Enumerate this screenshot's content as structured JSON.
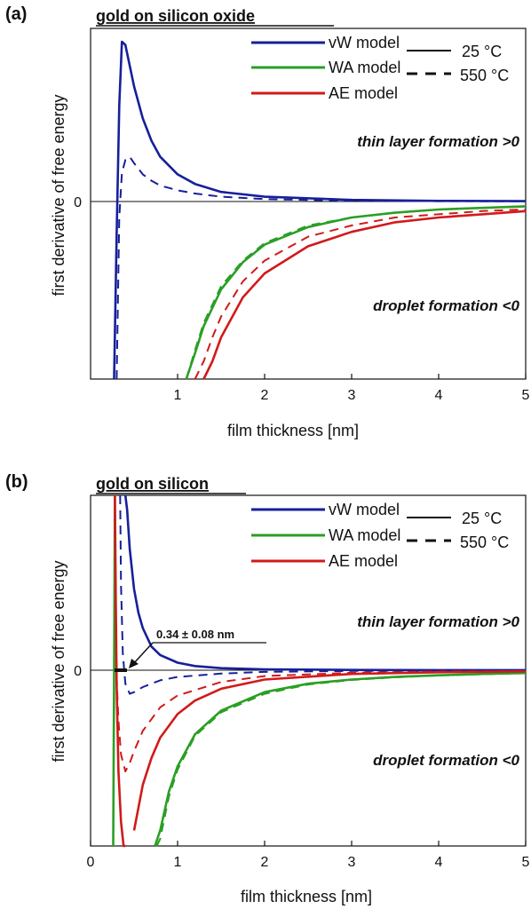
{
  "colors": {
    "vW": "#16209a",
    "WA": "#2a9f25",
    "AE": "#d11a1a",
    "axis": "#111111"
  },
  "chart_data": [
    {
      "type": "line",
      "panel_label": "(a)",
      "title": "gold on silicon oxide",
      "xlabel": "film thickness [nm]",
      "ylabel": "first derivative of free energy",
      "xlim": [
        0,
        5
      ],
      "xticks": [
        "1",
        "2",
        "3",
        "4",
        "5"
      ],
      "yticks": [
        "0"
      ],
      "legend_entries": [
        "vW model",
        "WA model",
        "AE model"
      ],
      "linestyle_legend": [
        "25 °C",
        "550 °C"
      ],
      "annotations": [
        "thin layer formation >0",
        "droplet formation <0"
      ],
      "series": [
        {
          "name": "vW model",
          "temperature": "25 °C",
          "style": "solid",
          "x": [
            0.27,
            0.3,
            0.33,
            0.36,
            0.4,
            0.45,
            0.5,
            0.6,
            0.7,
            0.8,
            1.0,
            1.2,
            1.5,
            2.0,
            3.0,
            4.0,
            5.0
          ],
          "y": [
            -1.2,
            -0.2,
            0.6,
            1.0,
            0.98,
            0.85,
            0.72,
            0.52,
            0.38,
            0.28,
            0.17,
            0.11,
            0.06,
            0.03,
            0.01,
            0.004,
            0.002
          ]
        },
        {
          "name": "vW model",
          "temperature": "550 °C",
          "style": "dashed",
          "x": [
            0.3,
            0.33,
            0.36,
            0.4,
            0.45,
            0.5,
            0.6,
            0.7,
            0.8,
            1.0,
            1.2,
            1.5,
            2.0,
            3.0,
            4.0,
            5.0
          ],
          "y": [
            -1.2,
            -0.1,
            0.18,
            0.26,
            0.28,
            0.24,
            0.17,
            0.13,
            0.1,
            0.07,
            0.05,
            0.03,
            0.015,
            0.005,
            0.002,
            0.001
          ]
        },
        {
          "name": "WA model",
          "temperature": "25 °C",
          "style": "solid",
          "x": [
            1.1,
            1.2,
            1.3,
            1.5,
            1.75,
            2.0,
            2.5,
            3.0,
            3.5,
            4.0,
            4.5,
            5.0
          ],
          "y": [
            -1.2,
            -0.95,
            -0.78,
            -0.55,
            -0.38,
            -0.27,
            -0.16,
            -0.1,
            -0.07,
            -0.05,
            -0.04,
            -0.03
          ]
        },
        {
          "name": "WA model",
          "temperature": "550 °C",
          "style": "dashed",
          "x": [
            1.1,
            1.2,
            1.3,
            1.5,
            1.75,
            2.0,
            2.5,
            3.0,
            3.5,
            4.0,
            4.5,
            5.0
          ],
          "y": [
            -1.2,
            -0.93,
            -0.76,
            -0.53,
            -0.37,
            -0.26,
            -0.15,
            -0.1,
            -0.07,
            -0.05,
            -0.04,
            -0.03
          ]
        },
        {
          "name": "AE model",
          "temperature": "25 °C",
          "style": "solid",
          "x": [
            1.3,
            1.4,
            1.5,
            1.75,
            2.0,
            2.5,
            3.0,
            3.5,
            4.0,
            4.5,
            5.0
          ],
          "y": [
            -1.2,
            -1.0,
            -0.85,
            -0.6,
            -0.45,
            -0.28,
            -0.19,
            -0.13,
            -0.1,
            -0.08,
            -0.06
          ]
        },
        {
          "name": "AE model",
          "temperature": "550 °C",
          "style": "dashed",
          "x": [
            1.2,
            1.3,
            1.4,
            1.5,
            1.75,
            2.0,
            2.5,
            3.0,
            3.5,
            4.0,
            4.5,
            5.0
          ],
          "y": [
            -1.2,
            -1.0,
            -0.85,
            -0.72,
            -0.5,
            -0.37,
            -0.22,
            -0.15,
            -0.1,
            -0.08,
            -0.06,
            -0.05
          ]
        }
      ]
    },
    {
      "type": "line",
      "panel_label": "(b)",
      "title": "gold on silicon",
      "xlabel": "film thickness [nm]",
      "ylabel": "first derivative of free energy",
      "xlim": [
        0,
        5
      ],
      "xticks": [
        "0",
        "1",
        "2",
        "3",
        "4",
        "5"
      ],
      "yticks": [
        "0"
      ],
      "legend_entries": [
        "vW model",
        "WA model",
        "AE model"
      ],
      "linestyle_legend": [
        "25 °C",
        "550 °C"
      ],
      "annotations": [
        "thin layer formation >0",
        "droplet formation <0"
      ],
      "marker_annotation": "0.34 ± 0.08 nm",
      "series": [
        {
          "name": "vW model",
          "temperature": "25 °C",
          "style": "solid",
          "x": [
            0.4,
            0.42,
            0.45,
            0.5,
            0.55,
            0.6,
            0.7,
            0.8,
            1.0,
            1.2,
            1.5,
            2.0,
            3.0,
            4.0,
            5.0
          ],
          "y": [
            1.2,
            0.95,
            0.72,
            0.48,
            0.34,
            0.25,
            0.14,
            0.09,
            0.045,
            0.025,
            0.012,
            0.005,
            0.0015,
            0.0006,
            0.0003
          ]
        },
        {
          "name": "vW model",
          "temperature": "550 °C",
          "style": "dashed",
          "x": [
            0.34,
            0.35,
            0.37,
            0.4,
            0.45,
            0.5,
            0.6,
            0.8,
            1.0,
            1.5,
            2.0,
            3.0,
            4.0,
            5.0
          ],
          "y": [
            1.2,
            0.5,
            0.1,
            -0.08,
            -0.14,
            -0.13,
            -0.1,
            -0.06,
            -0.04,
            -0.02,
            -0.01,
            -0.004,
            -0.002,
            -0.001
          ]
        },
        {
          "name": "WA model",
          "temperature": "25 °C",
          "style": "solid",
          "x": [
            0.26,
            0.27,
            0.28,
            0.29,
            0.3,
            0.31,
            0.32,
            0.74,
            0.8,
            0.9,
            1.0,
            1.2,
            1.5,
            2.0,
            2.5,
            3.0,
            3.5,
            4.0,
            4.5,
            5.0
          ],
          "y": [
            -1.2,
            0.0,
            1.2,
            null,
            null,
            null,
            null,
            -1.2,
            -0.95,
            -0.72,
            -0.57,
            -0.38,
            -0.24,
            -0.13,
            -0.08,
            -0.055,
            -0.04,
            -0.03,
            -0.022,
            -0.017
          ]
        },
        {
          "name": "WA model",
          "temperature": "550 °C",
          "style": "dashed",
          "x": [
            0.76,
            0.8,
            0.9,
            1.0,
            1.2,
            1.5,
            2.0,
            2.5,
            3.0,
            3.5,
            4.0,
            4.5,
            5.0
          ],
          "y": [
            -1.2,
            -1.0,
            -0.75,
            -0.59,
            -0.39,
            -0.25,
            -0.14,
            -0.085,
            -0.058,
            -0.042,
            -0.031,
            -0.024,
            -0.018
          ]
        },
        {
          "name": "AE model",
          "temperature": "25 °C",
          "style": "solid",
          "x": [
            0.28,
            0.29,
            0.3,
            0.32,
            0.35,
            0.38,
            0.4,
            0.42,
            0.45,
            0.5,
            0.6,
            0.7,
            0.8,
            1.0,
            1.2,
            1.5,
            2.0,
            3.0,
            4.0,
            5.0
          ],
          "y": [
            1.2,
            0.4,
            -0.1,
            -0.6,
            -0.9,
            -1.1,
            -1.2,
            null,
            null,
            -0.95,
            -0.68,
            -0.52,
            -0.4,
            -0.26,
            -0.18,
            -0.11,
            -0.055,
            -0.022,
            -0.012,
            -0.007
          ]
        },
        {
          "name": "AE model",
          "temperature": "550 °C",
          "style": "dashed",
          "x": [
            0.28,
            0.29,
            0.3,
            0.32,
            0.35,
            0.4,
            0.45,
            0.5,
            0.6,
            0.8,
            1.0,
            1.5,
            2.0,
            3.0,
            4.0,
            5.0
          ],
          "y": [
            1.2,
            0.3,
            -0.05,
            -0.3,
            -0.5,
            -0.6,
            -0.55,
            -0.48,
            -0.36,
            -0.22,
            -0.15,
            -0.07,
            -0.035,
            -0.015,
            -0.008,
            -0.005
          ]
        }
      ]
    }
  ]
}
